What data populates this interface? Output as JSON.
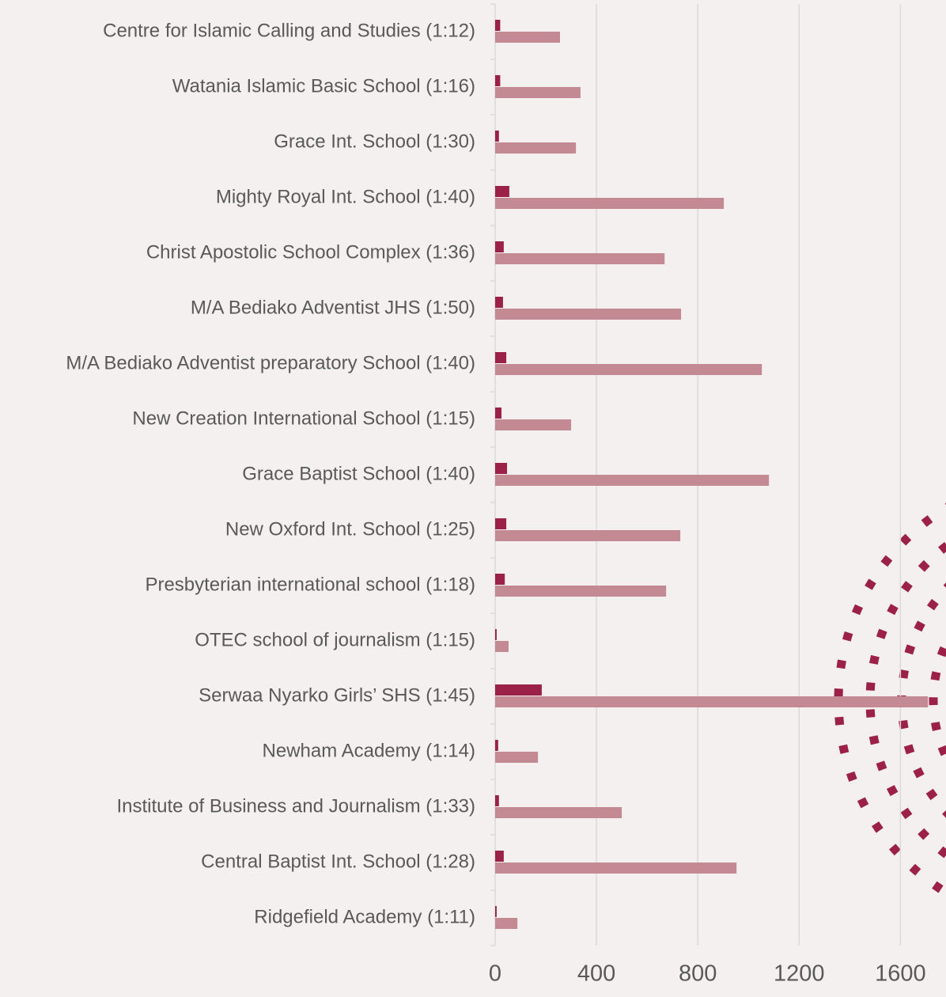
{
  "chart_data": {
    "type": "barh",
    "categories": [
      "Centre for Islamic Calling and Studies (1:12)",
      "Watania Islamic Basic School (1:16)",
      "Grace Int. School (1:30)",
      "Mighty Royal Int. School (1:40)",
      "Christ Apostolic School Complex (1:36)",
      "M/A Bediako Adventist JHS (1:50)",
      "M/A Bediako Adventist preparatory School (1:40)",
      "New Creation International School (1:15)",
      "Grace Baptist School (1:40)",
      "New Oxford Int. School (1:25)",
      "Presbyterian international school (1:18)",
      "OTEC school of journalism (1:15)",
      "Serwaa Nyarko Girls’ SHS (1:45)",
      "Newham Academy (1:14)",
      "Institute of Business and Journalism (1:33)",
      "Central Baptist Int. School (1:28)",
      "Ridgefield Academy (1:11)"
    ],
    "series": [
      {
        "color": "#9b2148",
        "values": [
          20,
          20,
          15,
          56,
          34,
          31,
          44,
          25,
          47,
          44,
          38,
          6,
          184,
          12,
          15,
          34,
          6
        ]
      },
      {
        "color": "#c48a93",
        "values": [
          256,
          337,
          319,
          903,
          669,
          734,
          1053,
          300,
          1081,
          731,
          675,
          53,
          1709,
          169,
          500,
          953,
          88
        ]
      }
    ],
    "xlim": [
      0,
      1780
    ],
    "xticks": [
      0,
      400,
      800,
      1200,
      1600
    ],
    "grid": true
  }
}
